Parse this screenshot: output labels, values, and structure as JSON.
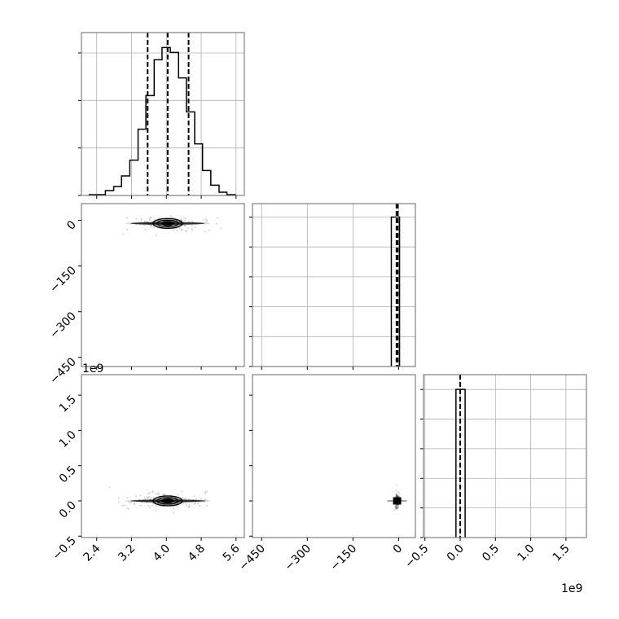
{
  "chart_data": {
    "type": "corner",
    "grid_on_histograms": true,
    "colors": {
      "line": "#000000",
      "grid": "#b0b0b0",
      "spine": "#808080",
      "points": "#000000"
    },
    "offset_labels": {
      "param3_y": "1e9",
      "param3_x": "1e9"
    },
    "params": [
      {
        "range": [
          2.05,
          5.79
        ],
        "ticks": [
          2.4,
          3.2,
          4.0,
          4.8,
          5.6
        ],
        "tick_labels": [
          "2.4",
          "3.2",
          "4.0",
          "4.8",
          "5.6"
        ]
      },
      {
        "range": [
          -480,
          55
        ],
        "ticks": [
          -450,
          -300,
          -150,
          0
        ],
        "tick_labels": [
          "−450",
          "−300",
          "−150",
          "0"
        ]
      },
      {
        "range": [
          -0.52,
          1.79
        ],
        "ticks": [
          -0.5,
          0.0,
          0.5,
          1.0,
          1.5
        ],
        "tick_labels": [
          "−0.5",
          "0.0",
          "0.5",
          "1.0",
          "1.5"
        ]
      }
    ],
    "histograms": [
      {
        "param": 0,
        "type": "step",
        "bin_edges": [
          2.23,
          2.42,
          2.6,
          2.79,
          2.97,
          3.16,
          3.35,
          3.53,
          3.72,
          3.9,
          4.09,
          4.28,
          4.46,
          4.65,
          4.83,
          5.02,
          5.21,
          5.39,
          5.58
        ],
        "counts": [
          3,
          3,
          18,
          33,
          72,
          130,
          244,
          368,
          500,
          545,
          527,
          433,
          308,
          190,
          92,
          38,
          12,
          3
        ],
        "ylim": [
          0,
          600
        ],
        "yticks": [
          0,
          175,
          350,
          525
        ],
        "quantiles": [
          3.57,
          4.03,
          4.51
        ]
      },
      {
        "param": 1,
        "type": "step",
        "bin_edges": [
          -24,
          3
        ],
        "counts": [
          1.0
        ],
        "ylim": [
          0,
          1.09
        ],
        "yticks": [
          0,
          0.2,
          0.4,
          0.6,
          0.8,
          1.0
        ],
        "quantiles": [
          -7,
          -5,
          -3
        ]
      },
      {
        "param": 2,
        "type": "step",
        "bin_edges": [
          -0.06,
          0.07
        ],
        "counts": [
          1.0
        ],
        "ylim": [
          0,
          1.1
        ],
        "yticks": [
          0,
          0.2,
          0.4,
          0.6,
          0.8,
          1.0
        ],
        "quantiles": [
          0.0,
          0.0,
          0.0
        ]
      }
    ],
    "scatter_2d": [
      {
        "x_param": 0,
        "y_param": 1,
        "center": [
          4.03,
          -10
        ],
        "spread": [
          0.45,
          4
        ]
      },
      {
        "x_param": 0,
        "y_param": 2,
        "center": [
          4.03,
          0.0
        ],
        "spread": [
          0.45,
          0.02
        ]
      },
      {
        "x_param": 1,
        "y_param": 2,
        "center": [
          -5,
          0.0
        ],
        "spread": [
          4,
          0.02
        ]
      }
    ]
  }
}
